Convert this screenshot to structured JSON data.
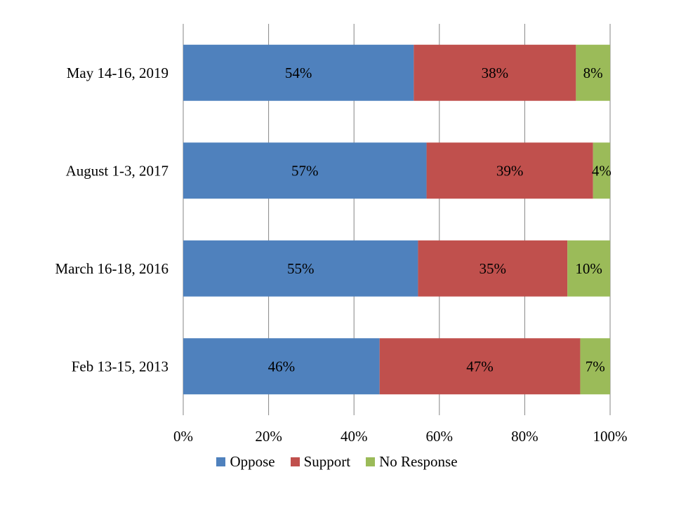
{
  "chart_data": {
    "type": "bar",
    "orientation": "horizontal",
    "stacked": "percent",
    "categories": [
      "May 14-16, 2019",
      "August 1-3, 2017",
      "March 16-18, 2016",
      "Feb 13-15, 2013"
    ],
    "series": [
      {
        "name": "Oppose",
        "values": [
          54,
          57,
          55,
          46
        ],
        "labels": [
          "54%",
          "57%",
          "55%",
          "46%"
        ],
        "color": "#4F81BD"
      },
      {
        "name": "Support",
        "values": [
          38,
          39,
          35,
          47
        ],
        "labels": [
          "38%",
          "39%",
          "35%",
          "47%"
        ],
        "color": "#C0504D"
      },
      {
        "name": "No Response",
        "values": [
          8,
          4,
          10,
          7
        ],
        "labels": [
          "8%",
          "4%",
          "10%",
          "7%"
        ],
        "color": "#9BBB59"
      }
    ],
    "xlim": [
      0,
      100
    ],
    "xticks": [
      0,
      20,
      40,
      60,
      80,
      100
    ],
    "xtick_labels": [
      "0%",
      "20%",
      "40%",
      "60%",
      "80%",
      "100%"
    ],
    "grid": true,
    "legend_position": "bottom"
  }
}
